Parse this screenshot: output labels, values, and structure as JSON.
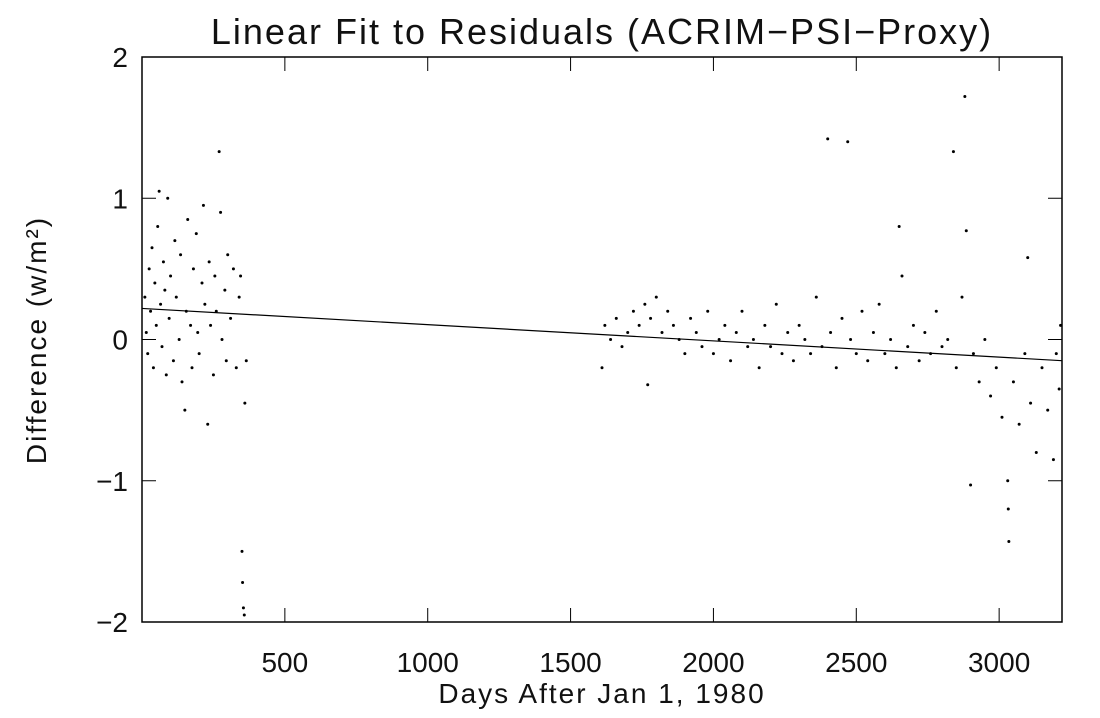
{
  "chart_data": {
    "type": "scatter",
    "title": "Linear Fit to Residuals (ACRIM−PSI−Proxy)",
    "xlabel": "Days After Jan 1, 1980",
    "ylabel": "Difference (w/m²)",
    "xlim": [
      0,
      3220
    ],
    "ylim": [
      -2,
      2
    ],
    "xticks": [
      500,
      1000,
      1500,
      2000,
      2500,
      3000
    ],
    "yticks": [
      {
        "value": -2,
        "label": "−2"
      },
      {
        "value": -1,
        "label": "−1"
      },
      0,
      1,
      2
    ],
    "series": [
      {
        "type": "scatter",
        "color": "#000000",
        "x": [
          10,
          15,
          20,
          25,
          30,
          35,
          40,
          45,
          50,
          55,
          60,
          65,
          70,
          75,
          80,
          85,
          90,
          95,
          100,
          110,
          115,
          120,
          130,
          135,
          140,
          150,
          155,
          160,
          170,
          175,
          180,
          190,
          195,
          200,
          210,
          215,
          220,
          230,
          235,
          240,
          250,
          255,
          260,
          270,
          275,
          280,
          290,
          295,
          300,
          310,
          320,
          330,
          340,
          345,
          350,
          352,
          355,
          358,
          360,
          365,
          1610,
          1620,
          1640,
          1660,
          1680,
          1700,
          1720,
          1740,
          1760,
          1770,
          1780,
          1800,
          1820,
          1840,
          1860,
          1880,
          1900,
          1920,
          1940,
          1960,
          1980,
          2000,
          2020,
          2040,
          2060,
          2080,
          2100,
          2120,
          2140,
          2160,
          2180,
          2200,
          2220,
          2240,
          2260,
          2280,
          2300,
          2320,
          2340,
          2360,
          2380,
          2400,
          2410,
          2430,
          2450,
          2470,
          2480,
          2500,
          2520,
          2540,
          2560,
          2580,
          2600,
          2620,
          2640,
          2650,
          2660,
          2680,
          2700,
          2720,
          2740,
          2760,
          2780,
          2800,
          2820,
          2840,
          2850,
          2870,
          2880,
          2885,
          2900,
          2910,
          2930,
          2950,
          2970,
          2990,
          3010,
          3030,
          3032,
          3034,
          3050,
          3070,
          3090,
          3100,
          3110,
          3130,
          3150,
          3170,
          3190,
          3200,
          3210,
          3215
        ],
        "values": [
          0.3,
          0.05,
          -0.1,
          0.5,
          0.2,
          0.65,
          -0.2,
          0.4,
          0.1,
          0.8,
          1.05,
          0.25,
          -0.05,
          0.55,
          0.35,
          -0.25,
          1.0,
          0.15,
          0.45,
          -0.15,
          0.7,
          0.3,
          0.0,
          0.6,
          -0.3,
          -0.5,
          0.2,
          0.85,
          0.1,
          -0.2,
          0.5,
          0.75,
          0.05,
          -0.1,
          0.4,
          0.95,
          0.25,
          -0.6,
          0.55,
          0.1,
          -0.25,
          0.45,
          0.2,
          1.33,
          0.9,
          0.0,
          0.35,
          -0.15,
          0.6,
          0.15,
          0.5,
          -0.2,
          0.3,
          0.45,
          -1.5,
          -1.72,
          -1.9,
          -1.95,
          -0.45,
          -0.15,
          -0.2,
          0.1,
          0.0,
          0.15,
          -0.05,
          0.05,
          0.2,
          0.1,
          0.25,
          -0.32,
          0.15,
          0.3,
          0.05,
          0.2,
          0.1,
          0.0,
          -0.1,
          0.15,
          0.05,
          -0.05,
          0.2,
          -0.1,
          0.0,
          0.1,
          -0.15,
          0.05,
          0.2,
          -0.05,
          0.0,
          -0.2,
          0.1,
          -0.05,
          0.25,
          -0.1,
          0.05,
          -0.15,
          0.1,
          0.0,
          -0.1,
          0.3,
          -0.05,
          1.42,
          0.05,
          -0.2,
          0.15,
          1.4,
          0.0,
          -0.1,
          0.2,
          -0.15,
          0.05,
          0.25,
          -0.1,
          0.0,
          -0.2,
          0.8,
          0.45,
          -0.05,
          0.1,
          -0.15,
          0.05,
          -0.1,
          0.2,
          -0.05,
          0.0,
          1.33,
          -0.2,
          0.3,
          1.72,
          0.77,
          -1.03,
          -0.1,
          -0.3,
          0.0,
          -0.4,
          -0.2,
          -0.55,
          -1.0,
          -1.2,
          -1.43,
          -0.3,
          -0.6,
          -0.1,
          0.58,
          -0.45,
          -0.8,
          -0.2,
          -0.5,
          -0.85,
          -0.1,
          -0.35,
          0.1
        ]
      },
      {
        "type": "line",
        "color": "#000000",
        "x": [
          0,
          3220
        ],
        "values": [
          0.22,
          -0.15
        ]
      }
    ]
  }
}
